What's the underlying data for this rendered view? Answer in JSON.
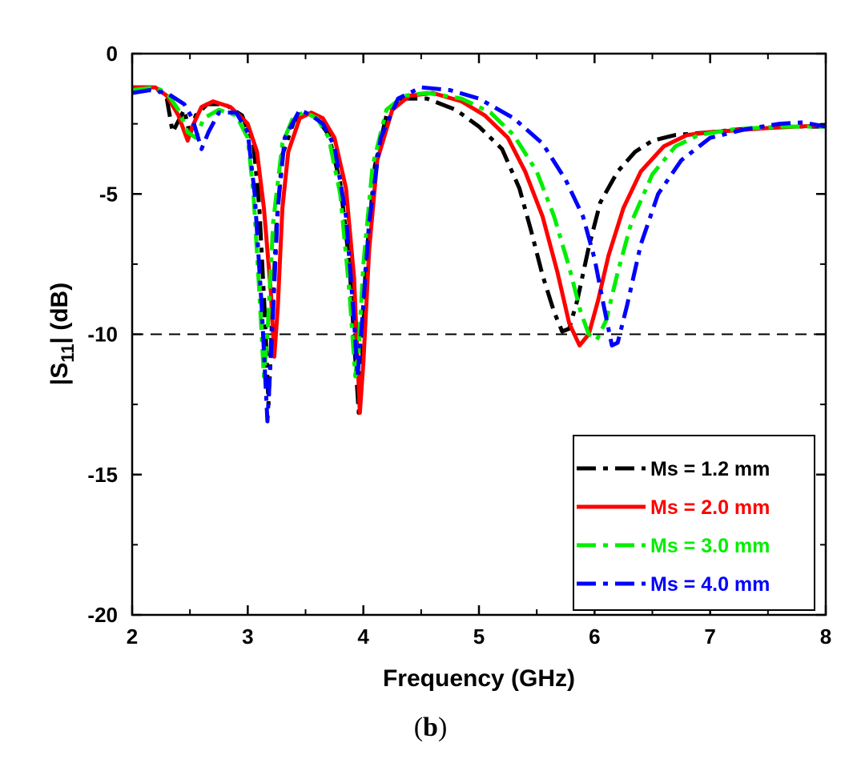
{
  "chart_data": {
    "type": "line",
    "title": "",
    "xlabel": "Frequency (GHz)",
    "ylabel_main": "|S",
    "ylabel_sub": "11",
    "ylabel_tail": "| (dB)",
    "xlim": [
      2,
      8
    ],
    "ylim": [
      -20,
      0
    ],
    "xticks": [
      2,
      3,
      4,
      5,
      6,
      7,
      8
    ],
    "yticks": [
      0,
      -5,
      -10,
      -15,
      -20
    ],
    "xtick_labels": [
      "2",
      "3",
      "4",
      "5",
      "6",
      "7",
      "8"
    ],
    "ytick_labels": [
      "0",
      "-5",
      "-10",
      "-15",
      "-20"
    ],
    "reference_line": {
      "y": -10,
      "style": "dashed",
      "color": "#000000"
    },
    "legend_position": "bottom-right",
    "series": [
      {
        "name": "Ms = 1.2 mm",
        "color": "#000000",
        "dash": "dashdot",
        "points": [
          [
            2.0,
            -1.2
          ],
          [
            2.2,
            -1.2
          ],
          [
            2.3,
            -1.6
          ],
          [
            2.35,
            -2.8
          ],
          [
            2.4,
            -2.4
          ],
          [
            2.45,
            -2.0
          ],
          [
            2.5,
            -2.9
          ],
          [
            2.55,
            -2.2
          ],
          [
            2.65,
            -1.8
          ],
          [
            2.8,
            -1.8
          ],
          [
            2.95,
            -2.2
          ],
          [
            3.05,
            -3.2
          ],
          [
            3.1,
            -5.5
          ],
          [
            3.15,
            -9.5
          ],
          [
            3.18,
            -12.5
          ],
          [
            3.21,
            -9.5
          ],
          [
            3.25,
            -6.0
          ],
          [
            3.3,
            -3.6
          ],
          [
            3.4,
            -2.4
          ],
          [
            3.5,
            -2.1
          ],
          [
            3.6,
            -2.3
          ],
          [
            3.7,
            -2.9
          ],
          [
            3.8,
            -4.6
          ],
          [
            3.88,
            -7.5
          ],
          [
            3.94,
            -11.5
          ],
          [
            3.96,
            -12.8
          ],
          [
            3.99,
            -11.0
          ],
          [
            4.02,
            -7.5
          ],
          [
            4.1,
            -4.0
          ],
          [
            4.2,
            -2.2
          ],
          [
            4.35,
            -1.6
          ],
          [
            4.55,
            -1.6
          ],
          [
            4.8,
            -2.0
          ],
          [
            5.0,
            -2.6
          ],
          [
            5.2,
            -3.4
          ],
          [
            5.35,
            -4.8
          ],
          [
            5.45,
            -6.3
          ],
          [
            5.55,
            -7.9
          ],
          [
            5.65,
            -9.2
          ],
          [
            5.72,
            -9.9
          ],
          [
            5.78,
            -9.8
          ],
          [
            5.85,
            -8.8
          ],
          [
            5.95,
            -6.9
          ],
          [
            6.05,
            -5.3
          ],
          [
            6.2,
            -4.2
          ],
          [
            6.35,
            -3.5
          ],
          [
            6.5,
            -3.1
          ],
          [
            6.7,
            -2.9
          ],
          [
            7.0,
            -2.8
          ],
          [
            7.5,
            -2.6
          ],
          [
            8.0,
            -2.6
          ]
        ]
      },
      {
        "name": "Ms = 2.0 mm",
        "color": "#ff0000",
        "dash": "solid",
        "points": [
          [
            2.0,
            -1.2
          ],
          [
            2.2,
            -1.2
          ],
          [
            2.3,
            -1.5
          ],
          [
            2.4,
            -2.2
          ],
          [
            2.48,
            -3.1
          ],
          [
            2.52,
            -2.6
          ],
          [
            2.6,
            -1.9
          ],
          [
            2.7,
            -1.7
          ],
          [
            2.85,
            -1.9
          ],
          [
            3.0,
            -2.5
          ],
          [
            3.08,
            -3.5
          ],
          [
            3.14,
            -5.5
          ],
          [
            3.2,
            -8.5
          ],
          [
            3.23,
            -10.8
          ],
          [
            3.26,
            -9.0
          ],
          [
            3.3,
            -5.5
          ],
          [
            3.35,
            -3.5
          ],
          [
            3.45,
            -2.3
          ],
          [
            3.55,
            -2.1
          ],
          [
            3.65,
            -2.3
          ],
          [
            3.75,
            -3.0
          ],
          [
            3.85,
            -4.8
          ],
          [
            3.92,
            -8.0
          ],
          [
            3.97,
            -12.8
          ],
          [
            4.0,
            -11.0
          ],
          [
            4.05,
            -7.0
          ],
          [
            4.12,
            -3.8
          ],
          [
            4.25,
            -2.0
          ],
          [
            4.4,
            -1.5
          ],
          [
            4.6,
            -1.4
          ],
          [
            4.85,
            -1.7
          ],
          [
            5.05,
            -2.2
          ],
          [
            5.25,
            -3.0
          ],
          [
            5.4,
            -4.2
          ],
          [
            5.55,
            -5.8
          ],
          [
            5.68,
            -7.8
          ],
          [
            5.78,
            -9.6
          ],
          [
            5.87,
            -10.4
          ],
          [
            5.95,
            -10.0
          ],
          [
            6.03,
            -8.8
          ],
          [
            6.12,
            -7.2
          ],
          [
            6.25,
            -5.5
          ],
          [
            6.4,
            -4.2
          ],
          [
            6.6,
            -3.3
          ],
          [
            6.8,
            -2.9
          ],
          [
            7.0,
            -2.8
          ],
          [
            7.5,
            -2.65
          ],
          [
            8.0,
            -2.55
          ]
        ]
      },
      {
        "name": "Ms = 3.0 mm",
        "color": "#00ee00",
        "dash": "dashdot",
        "points": [
          [
            2.0,
            -1.3
          ],
          [
            2.2,
            -1.2
          ],
          [
            2.3,
            -1.4
          ],
          [
            2.4,
            -2.0
          ],
          [
            2.48,
            -2.8
          ],
          [
            2.55,
            -3.0
          ],
          [
            2.62,
            -2.3
          ],
          [
            2.75,
            -2.0
          ],
          [
            2.9,
            -2.2
          ],
          [
            3.0,
            -3.0
          ],
          [
            3.05,
            -5.0
          ],
          [
            3.1,
            -8.5
          ],
          [
            3.14,
            -11.5
          ],
          [
            3.17,
            -10.0
          ],
          [
            3.22,
            -6.0
          ],
          [
            3.3,
            -3.2
          ],
          [
            3.4,
            -2.2
          ],
          [
            3.5,
            -2.1
          ],
          [
            3.6,
            -2.3
          ],
          [
            3.7,
            -3.0
          ],
          [
            3.8,
            -5.0
          ],
          [
            3.88,
            -8.5
          ],
          [
            3.93,
            -11.5
          ],
          [
            3.96,
            -10.5
          ],
          [
            4.0,
            -7.5
          ],
          [
            4.08,
            -4.0
          ],
          [
            4.2,
            -2.0
          ],
          [
            4.35,
            -1.5
          ],
          [
            4.55,
            -1.4
          ],
          [
            4.85,
            -1.6
          ],
          [
            5.1,
            -2.1
          ],
          [
            5.3,
            -2.9
          ],
          [
            5.5,
            -4.2
          ],
          [
            5.65,
            -5.8
          ],
          [
            5.78,
            -7.6
          ],
          [
            5.88,
            -9.2
          ],
          [
            5.95,
            -10.0
          ],
          [
            6.02,
            -10.2
          ],
          [
            6.1,
            -9.5
          ],
          [
            6.2,
            -7.8
          ],
          [
            6.32,
            -6.0
          ],
          [
            6.5,
            -4.3
          ],
          [
            6.7,
            -3.3
          ],
          [
            6.9,
            -2.9
          ],
          [
            7.2,
            -2.7
          ],
          [
            7.6,
            -2.6
          ],
          [
            8.0,
            -2.6
          ]
        ]
      },
      {
        "name": "Ms = 4.0 mm",
        "color": "#0000ff",
        "dash": "dashdot",
        "points": [
          [
            2.0,
            -1.4
          ],
          [
            2.15,
            -1.3
          ],
          [
            2.3,
            -1.4
          ],
          [
            2.45,
            -1.8
          ],
          [
            2.52,
            -2.3
          ],
          [
            2.6,
            -3.4
          ],
          [
            2.66,
            -2.8
          ],
          [
            2.75,
            -2.1
          ],
          [
            2.9,
            -2.1
          ],
          [
            3.0,
            -2.8
          ],
          [
            3.06,
            -5.0
          ],
          [
            3.12,
            -9.0
          ],
          [
            3.17,
            -13.1
          ],
          [
            3.21,
            -10.0
          ],
          [
            3.26,
            -5.5
          ],
          [
            3.32,
            -3.0
          ],
          [
            3.45,
            -2.0
          ],
          [
            3.55,
            -2.2
          ],
          [
            3.65,
            -2.5
          ],
          [
            3.75,
            -3.3
          ],
          [
            3.85,
            -5.8
          ],
          [
            3.92,
            -9.5
          ],
          [
            3.95,
            -11.5
          ],
          [
            3.99,
            -9.5
          ],
          [
            4.05,
            -6.0
          ],
          [
            4.15,
            -3.0
          ],
          [
            4.3,
            -1.6
          ],
          [
            4.5,
            -1.2
          ],
          [
            4.75,
            -1.3
          ],
          [
            5.0,
            -1.6
          ],
          [
            5.3,
            -2.3
          ],
          [
            5.55,
            -3.2
          ],
          [
            5.75,
            -4.5
          ],
          [
            5.9,
            -5.8
          ],
          [
            6.0,
            -7.3
          ],
          [
            6.08,
            -9.0
          ],
          [
            6.15,
            -10.4
          ],
          [
            6.2,
            -10.3
          ],
          [
            6.28,
            -9.0
          ],
          [
            6.4,
            -6.8
          ],
          [
            6.55,
            -5.0
          ],
          [
            6.75,
            -3.8
          ],
          [
            7.0,
            -3.0
          ],
          [
            7.3,
            -2.7
          ],
          [
            7.6,
            -2.5
          ],
          [
            7.8,
            -2.45
          ],
          [
            8.0,
            -2.6
          ]
        ]
      }
    ]
  },
  "caption": {
    "open": "(",
    "letter": "b",
    "close": ")"
  }
}
